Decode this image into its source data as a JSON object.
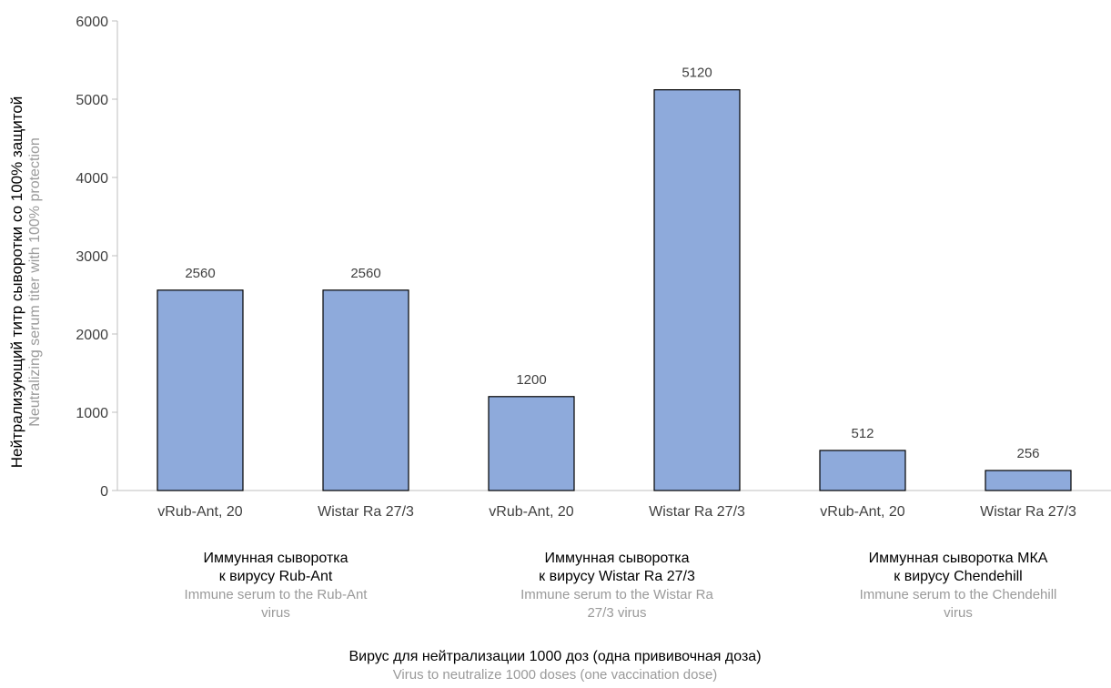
{
  "chart_data": {
    "type": "bar",
    "categories": [
      "vRub-Ant, 20",
      "Wistar Ra 27/3",
      "vRub-Ant, 20",
      "Wistar Ra 27/3",
      "vRub-Ant, 20",
      "Wistar Ra 27/3"
    ],
    "values": [
      2560,
      2560,
      1200,
      5120,
      512,
      256
    ],
    "data_labels": [
      "2560",
      "2560",
      "1200",
      "5120",
      "512",
      "256"
    ],
    "groups": [
      {
        "ru_line1": "Иммунная сыворотка",
        "ru_line2": "к вирусу Rub-Ant",
        "en_line1": "Immune serum to the Rub-Ant",
        "en_line2": "virus"
      },
      {
        "ru_line1": "Иммунная сыворотка",
        "ru_line2": "к вирусу Wistar Ra 27/3",
        "en_line1": "Immune serum to the Wistar Ra",
        "en_line2": "27/3 virus"
      },
      {
        "ru_line1": "Иммунная сыворотка МКА",
        "ru_line2": "к вирусу Chendehill",
        "en_line1": "Immune serum to the Chendehill",
        "en_line2": "virus"
      }
    ],
    "ylabel_ru": "Нейтрализующий титр сыворотки со 100% защитой",
    "ylabel_en": "Neutralizing serum titer with 100% protection",
    "xlabel_ru": "Вирус для нейтрализации 1000 доз (одна прививочная доза)",
    "xlabel_en": "Virus to neutralize 1000 doses (one vaccination dose)",
    "ylim": [
      0,
      6000
    ],
    "yticks": [
      "0",
      "1000",
      "2000",
      "3000",
      "4000",
      "5000",
      "6000"
    ],
    "grid": false,
    "bar_color": "#8eaadb",
    "bar_edge_color": "#000000"
  }
}
